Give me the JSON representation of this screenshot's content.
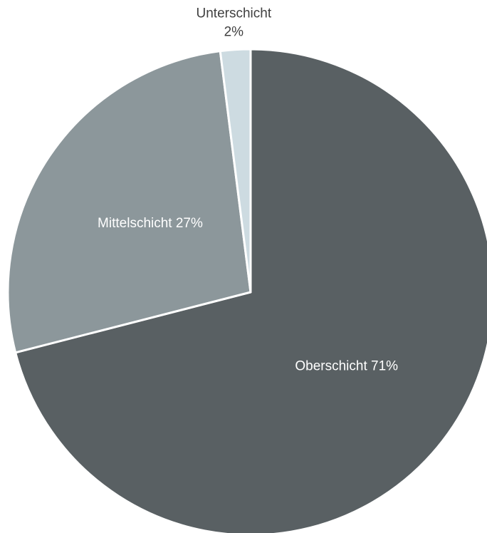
{
  "chart_data": {
    "type": "pie",
    "categories": [
      "Oberschicht",
      "Mittelschicht",
      "Unterschicht"
    ],
    "values": [
      71,
      27,
      2
    ],
    "value_labels": [
      "71%",
      "27%",
      "2%"
    ],
    "colors": [
      "#596063",
      "#8c979b",
      "#cddbe1"
    ]
  }
}
